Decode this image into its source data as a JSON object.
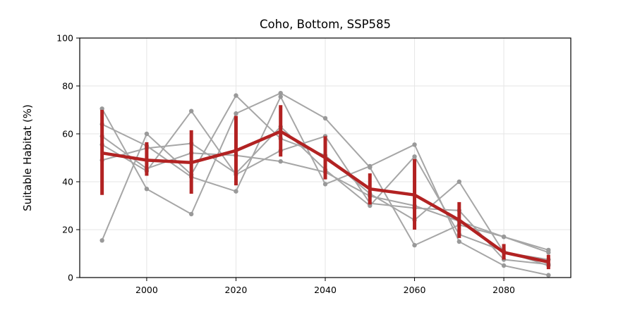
{
  "chart_data": {
    "type": "line",
    "title": "Coho, Bottom, SSP585",
    "xlabel": "",
    "ylabel": "Suitable Habitat (%)",
    "xlim": [
      1985,
      2095
    ],
    "ylim": [
      0,
      100
    ],
    "xticks": [
      2000,
      2020,
      2040,
      2060,
      2080
    ],
    "yticks": [
      0,
      20,
      40,
      60,
      80,
      100
    ],
    "grid": true,
    "x": [
      1990,
      2000,
      2010,
      2020,
      2030,
      2040,
      2050,
      2060,
      2070,
      2080,
      2090
    ],
    "series": [
      {
        "values": [
          70.5,
          37.0,
          26.5,
          68.5,
          77.0,
          66.5,
          46.0,
          13.5,
          22.0,
          17.0,
          10.5
        ]
      },
      {
        "values": [
          64.0,
          55.0,
          42.0,
          36.0,
          75.5,
          39.0,
          46.5,
          55.5,
          15.0,
          5.0,
          1.0
        ]
      },
      {
        "values": [
          15.5,
          60.0,
          43.0,
          76.0,
          58.0,
          51.0,
          35.0,
          24.0,
          40.0,
          10.5,
          7.5
        ]
      },
      {
        "values": [
          59.0,
          45.5,
          52.0,
          51.0,
          48.5,
          44.0,
          34.0,
          30.0,
          23.5,
          17.0,
          11.5
        ]
      },
      {
        "values": [
          49.0,
          54.0,
          56.0,
          43.5,
          63.0,
          45.0,
          30.0,
          50.5,
          18.0,
          11.0,
          5.0
        ]
      },
      {
        "values": [
          55.5,
          44.5,
          69.5,
          43.0,
          53.0,
          59.0,
          31.0,
          29.0,
          28.0,
          7.5,
          5.5
        ]
      }
    ],
    "mean": {
      "values": [
        52,
        49,
        48,
        53,
        61,
        50,
        37,
        34.5,
        24,
        10.5,
        6.5
      ],
      "error_low": [
        34.5,
        42.5,
        35,
        38.5,
        50.5,
        41,
        30.5,
        20,
        16.5,
        7.5,
        3.5
      ],
      "error_high": [
        70,
        56.5,
        61.5,
        67.5,
        72,
        59,
        43.5,
        49.5,
        31.5,
        14,
        9.5
      ]
    },
    "colors": {
      "members": "#a6a6a6",
      "mean": "#b22222",
      "grid": "#e6e6e6",
      "axes": "#000000"
    }
  }
}
